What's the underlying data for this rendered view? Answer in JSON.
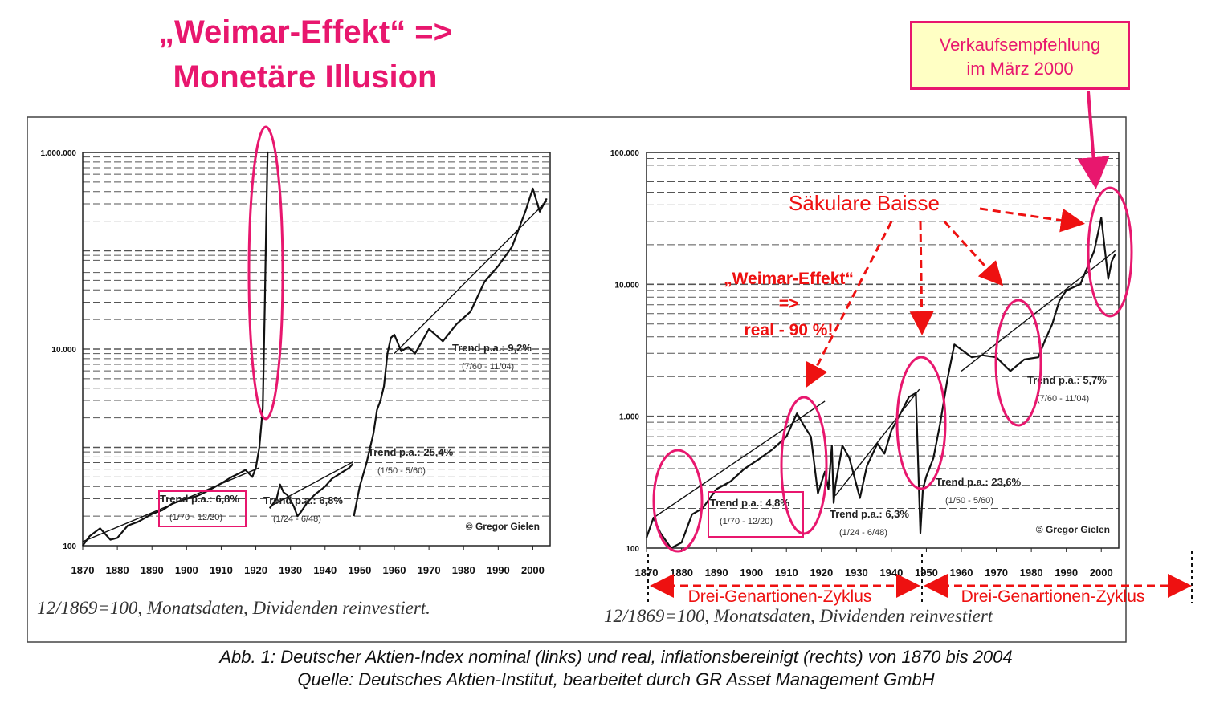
{
  "headline": {
    "line1": "„Weimar-Effekt“ =>",
    "line2": "Monetäre Illusion"
  },
  "recommendation": {
    "line1": "Verkaufsempfehlung",
    "line2": "im März 2000"
  },
  "colors": {
    "accent": "#e8176e",
    "recommendation_bg": "#ffffc4",
    "line": "#111111"
  },
  "chart_data": [
    {
      "type": "line",
      "title": "",
      "yscale": "log",
      "ylim": [
        100,
        1000000
      ],
      "xlim": [
        1870,
        2005
      ],
      "ytick_labels": [
        "1.000.000",
        "10.000",
        "100"
      ],
      "ytick_values": [
        1000000,
        10000,
        100
      ],
      "xtick_labels": [
        "1870",
        "1880",
        "1890",
        "1900",
        "1910",
        "1920",
        "1930",
        "1940",
        "1950",
        "1960",
        "1970",
        "1980",
        "1990",
        "2000"
      ],
      "grid": true,
      "series": [
        {
          "x": [
            1870,
            1872,
            1875,
            1878,
            1880,
            1883,
            1886,
            1890,
            1893,
            1896,
            1900,
            1903,
            1906,
            1910,
            1913,
            1915,
            1917,
            1919,
            1920,
            1921,
            1922,
            1922.6,
            1923,
            1923.4,
            1923.6
          ],
          "y": [
            100,
            125,
            150,
            115,
            120,
            160,
            175,
            210,
            230,
            270,
            300,
            320,
            360,
            430,
            500,
            540,
            590,
            500,
            620,
            1000,
            2500,
            30000,
            200000,
            1000000,
            1000000
          ]
        },
        {
          "x": [
            1924,
            1926,
            1927,
            1928,
            1929,
            1930,
            1931,
            1932,
            1933,
            1935,
            1937,
            1940,
            1942,
            1945,
            1947,
            1948
          ],
          "y": [
            240,
            300,
            420,
            350,
            330,
            290,
            250,
            200,
            220,
            280,
            330,
            400,
            480,
            560,
            620,
            680
          ]
        },
        {
          "x": [
            1948.3,
            1950,
            1952,
            1954,
            1955,
            1956,
            1957,
            1958,
            1959,
            1960,
            1962,
            1964,
            1966,
            1968,
            1970,
            1974,
            1978,
            1982,
            1986,
            1990,
            1994,
            1998,
            2000,
            2002,
            2004
          ],
          "y": [
            200,
            400,
            700,
            1400,
            2400,
            3000,
            4200,
            9000,
            13000,
            14000,
            9500,
            10500,
            9000,
            12000,
            16000,
            12000,
            18000,
            24000,
            48000,
            70000,
            110000,
            260000,
            430000,
            250000,
            340000
          ]
        }
      ],
      "trend_lines": [
        {
          "label": "Trend p.a.: 6,8%",
          "range": "(1/70 - 12/20)",
          "x": [
            1870,
            1921
          ],
          "y": [
            110,
            620
          ]
        },
        {
          "label": "Trend p.a.: 6,8%",
          "range": "(1/24 - 6/48)",
          "x": [
            1924,
            1948
          ],
          "y": [
            250,
            710
          ]
        },
        {
          "label": "Trend p.a.: 25,4%",
          "range": "(1/50 - 5/60)"
        },
        {
          "label": "Trend p.a.: 9,2%",
          "range": "(7/60 - 11/04)",
          "x": [
            1960,
            2004
          ],
          "y": [
            9000,
            320000
          ]
        }
      ],
      "copyright": "© Gregor Gielen",
      "footnote": "12/1869=100, Monatsdaten, Dividenden reinvestiert."
    },
    {
      "type": "line",
      "title": "",
      "yscale": "log",
      "ylim": [
        100,
        100000
      ],
      "xlim": [
        1870,
        2005
      ],
      "ytick_labels": [
        "100.000",
        "10.000",
        "1.000",
        "100"
      ],
      "ytick_values": [
        100000,
        10000,
        1000,
        100
      ],
      "xtick_labels": [
        "1870",
        "1880",
        "1890",
        "1900",
        "1910",
        "1920",
        "1930",
        "1940",
        "1950",
        "1960",
        "1970",
        "1980",
        "1990",
        "2000"
      ],
      "grid": true,
      "series": [
        {
          "x": [
            1870,
            1872,
            1874,
            1877,
            1880,
            1883,
            1886,
            1890,
            1894,
            1898,
            1902,
            1906,
            1910,
            1913,
            1915,
            1917,
            1919,
            1921,
            1922,
            1923,
            1923.5,
            1924,
            1926,
            1928,
            1931,
            1933,
            1936,
            1938,
            1940,
            1943,
            1945,
            1947,
            1948.3,
            1949,
            1950,
            1952,
            1954,
            1956,
            1958,
            1960,
            1963,
            1966,
            1970,
            1974,
            1978,
            1982,
            1984,
            1986,
            1988,
            1990,
            1994,
            1998,
            2000,
            2002,
            2003,
            2004
          ],
          "y": [
            120,
            170,
            130,
            100,
            110,
            180,
            200,
            280,
            320,
            400,
            470,
            560,
            700,
            1050,
            850,
            700,
            260,
            380,
            280,
            600,
            220,
            300,
            600,
            480,
            240,
            420,
            620,
            520,
            780,
            1100,
            1400,
            1500,
            130,
            280,
            350,
            480,
            900,
            1900,
            3500,
            3200,
            2800,
            2900,
            2800,
            2200,
            2700,
            2800,
            3800,
            5000,
            7500,
            9000,
            10000,
            18000,
            32000,
            11000,
            15000,
            17000
          ]
        }
      ],
      "trend_lines": [
        {
          "label": "Trend p.a.: 4,8%",
          "range": "(1/70 - 12/20)",
          "x": [
            1872,
            1921
          ],
          "y": [
            170,
            1300
          ]
        },
        {
          "label": "Trend p.a.: 6,3%",
          "range": "(1/24 - 6/48)",
          "x": [
            1924,
            1948
          ],
          "y": [
            250,
            1600
          ]
        },
        {
          "label": "Trend p.a.: 23,6%",
          "range": "(1/50 - 5/60)"
        },
        {
          "label": "Trend p.a.: 5,7%",
          "range": "(7/60 - 11/04)",
          "x": [
            1960,
            2004
          ],
          "y": [
            2200,
            18000
          ]
        }
      ],
      "annotations": {
        "saekulare_baisse": "Säkulare Baisse",
        "weimar_line1": "„Weimar-Effekt“",
        "weimar_line2": "=>",
        "weimar_line3": "real   - 90 %!",
        "cycle1": "Drei-Genartionen-Zyklus",
        "cycle2": "Drei-Genartionen-Zyklus"
      },
      "copyright": "© Gregor Gielen",
      "footnote": "12/1869=100, Monatsdaten, Dividenden reinvestiert"
    }
  ],
  "caption": {
    "line1": "Abb. 1: Deutscher Aktien-Index nominal (links) und real, inflationsbereinigt (rechts) von 1870 bis 2004",
    "line2": "Quelle: Deutsches Aktien-Institut, bearbeitet durch GR Asset Management GmbH"
  }
}
